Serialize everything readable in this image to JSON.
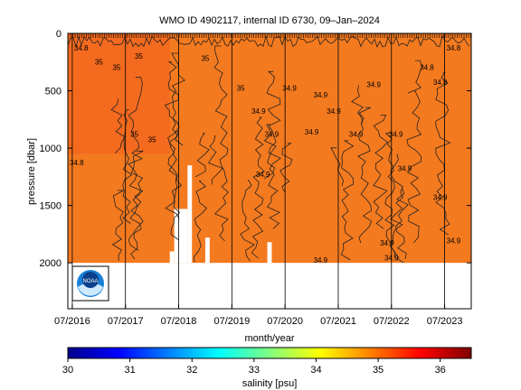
{
  "chart_data": {
    "type": "heatmap",
    "title": "WMO ID 4902117, internal ID 6730, 09–Jan–2024",
    "xlabel": "month/year",
    "ylabel": "pressure [dbar]",
    "x_tick_labels": [
      "07/2016",
      "07/2017",
      "07/2018",
      "07/2019",
      "07/2020",
      "07/2021",
      "07/2022",
      "07/2023"
    ],
    "y_tick_labels": [
      "0",
      "500",
      "1000",
      "1500",
      "2000"
    ],
    "y_ticks": [
      0,
      500,
      1000,
      1500,
      2000
    ],
    "ylim": [
      2400,
      0
    ],
    "xlim": [
      "2016-06",
      "2024-01"
    ],
    "colorbar": {
      "label": "salinity [psu]",
      "ticks": [
        "30",
        "31",
        "32",
        "33",
        "34",
        "35",
        "36"
      ],
      "range": [
        30,
        36.5
      ],
      "colors": [
        "#00008b",
        "#0000ff",
        "#0080ff",
        "#00ffff",
        "#80ff80",
        "#ffff00",
        "#ff8000",
        "#ff0000",
        "#800000"
      ]
    },
    "fill_color": "#f46a1e",
    "fill_color_deep": "#f47a1f",
    "contour_labels": [
      "34.8",
      "34.9",
      "35"
    ],
    "data_max_pressure": 2000,
    "gaps": [
      {
        "x": [
          "2018-05",
          "2018-06"
        ],
        "min_pressure": 1900
      },
      {
        "x": [
          "2018-06",
          "2018-09"
        ],
        "min_pressure": 1530
      },
      {
        "x": [
          "2018-09",
          "2018-10"
        ],
        "min_pressure": 1150
      },
      {
        "x": [
          "2019-01",
          "2019-02"
        ],
        "min_pressure": 1780
      },
      {
        "x": [
          "2020-03",
          "2020-04"
        ],
        "min_pressure": 1820
      }
    ],
    "logo": "noaa-logo"
  }
}
